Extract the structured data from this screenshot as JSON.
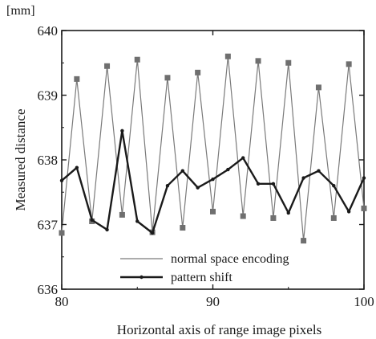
{
  "chart_data": {
    "type": "line",
    "xlabel": "Horizontal axis of range image pixels",
    "ylabel": "Measured distance",
    "y_unit": "[mm]",
    "xlim": [
      80,
      100
    ],
    "ylim": [
      636,
      640
    ],
    "x_ticks": [
      "80",
      "90",
      "100"
    ],
    "y_ticks": [
      "636",
      "637",
      "638",
      "639",
      "640"
    ],
    "grid": false,
    "legend_position": "bottom-center",
    "series": [
      {
        "name": "normal space encoding",
        "color": "#7a7a7a",
        "marker": "square",
        "x": [
          80,
          81,
          82,
          83,
          84,
          85,
          86,
          87,
          88,
          89,
          90,
          91,
          92,
          93,
          94,
          95,
          96,
          97,
          98,
          99,
          100
        ],
        "y": [
          636.87,
          639.25,
          637.05,
          639.45,
          637.15,
          639.55,
          636.88,
          639.27,
          636.95,
          639.35,
          637.2,
          639.6,
          637.13,
          639.53,
          637.1,
          639.5,
          636.75,
          639.12,
          637.1,
          639.48,
          637.25
        ]
      },
      {
        "name": "pattern shift",
        "color": "#1a1a1a",
        "marker": "dot",
        "x": [
          80,
          81,
          82,
          83,
          84,
          85,
          86,
          87,
          88,
          89,
          90,
          91,
          92,
          93,
          94,
          95,
          96,
          97,
          98,
          99,
          100
        ],
        "y": [
          637.68,
          637.88,
          637.07,
          636.92,
          638.45,
          637.05,
          636.87,
          637.6,
          637.83,
          637.57,
          637.7,
          637.85,
          638.03,
          637.63,
          637.63,
          637.18,
          637.72,
          637.83,
          637.6,
          637.2,
          637.72
        ]
      }
    ]
  }
}
